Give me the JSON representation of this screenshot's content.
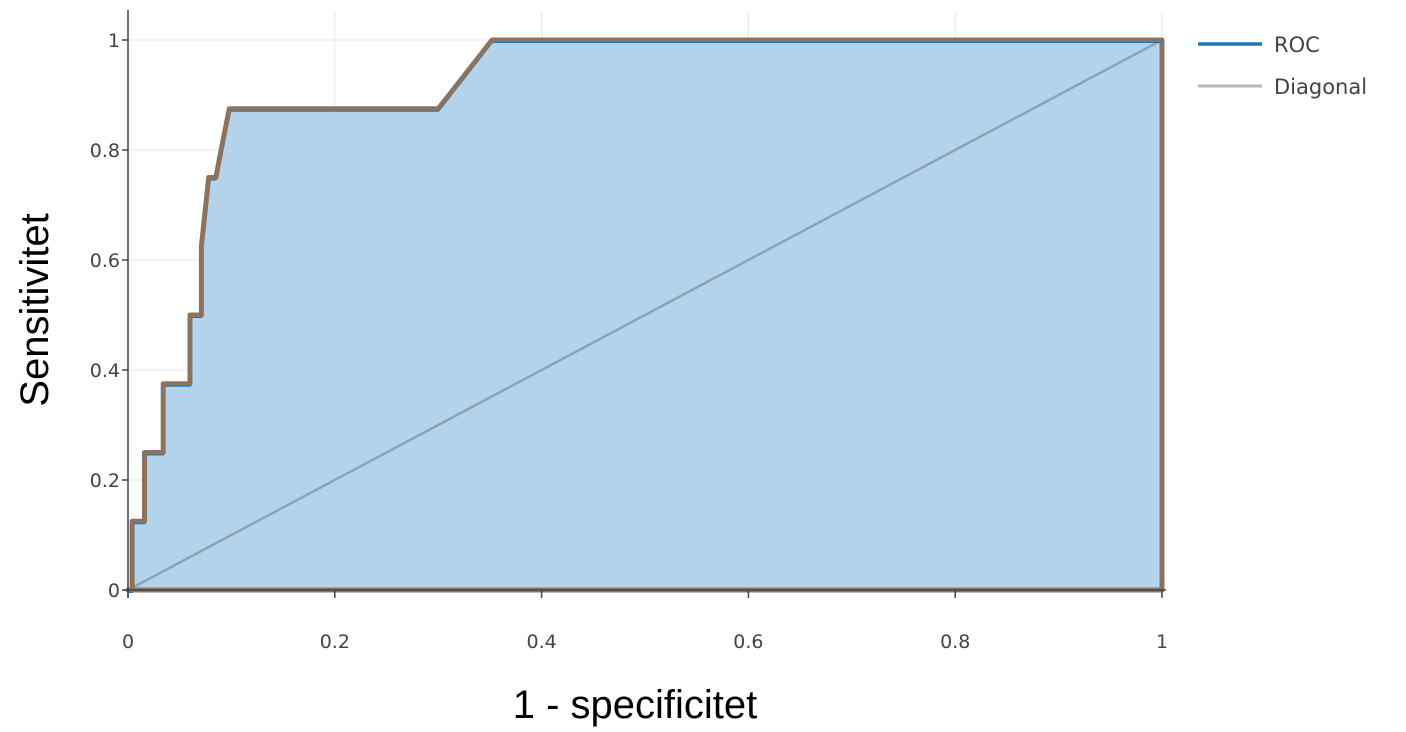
{
  "chart_data": {
    "type": "line",
    "xlabel": "1 - specificitet",
    "ylabel": "Sensitivitet",
    "xlim": [
      0,
      1
    ],
    "ylim": [
      0,
      1
    ],
    "x_ticks": [
      0,
      0.2,
      0.4,
      0.6,
      0.8,
      1
    ],
    "y_ticks": [
      0,
      0.2,
      0.4,
      0.6,
      0.8,
      1
    ],
    "x_tick_labels": [
      "0",
      "0.2",
      "0.4",
      "0.6",
      "0.8",
      "1"
    ],
    "y_tick_labels": [
      "0",
      "0.2",
      "0.4",
      "0.6",
      "0.8",
      "1"
    ],
    "grid": true,
    "legend_position": "top-right",
    "series": [
      {
        "name": "ROC",
        "color": "#1f77b4",
        "fill_color": "#b3d3ec",
        "outline_color": "#8b7360",
        "filled": true,
        "x": [
          0,
          0.004,
          0.004,
          0.012,
          0.016,
          0.016,
          0.03,
          0.034,
          0.034,
          0.056,
          0.06,
          0.06,
          0.066,
          0.071,
          0.071,
          0.078,
          0.085,
          0.085,
          0.09,
          0.098,
          0.098,
          0.3,
          0.352,
          1.0,
          1.0
        ],
        "y": [
          0,
          0,
          0.125,
          0.125,
          0.125,
          0.25,
          0.25,
          0.25,
          0.375,
          0.375,
          0.375,
          0.5,
          0.5,
          0.5,
          0.625,
          0.75,
          0.75,
          0.75,
          0.8,
          0.875,
          0.875,
          0.875,
          1.0,
          1.0,
          0
        ]
      },
      {
        "name": "Diagonal",
        "color": "#b8b8b8",
        "x": [
          0,
          1
        ],
        "y": [
          0,
          1
        ]
      }
    ]
  }
}
